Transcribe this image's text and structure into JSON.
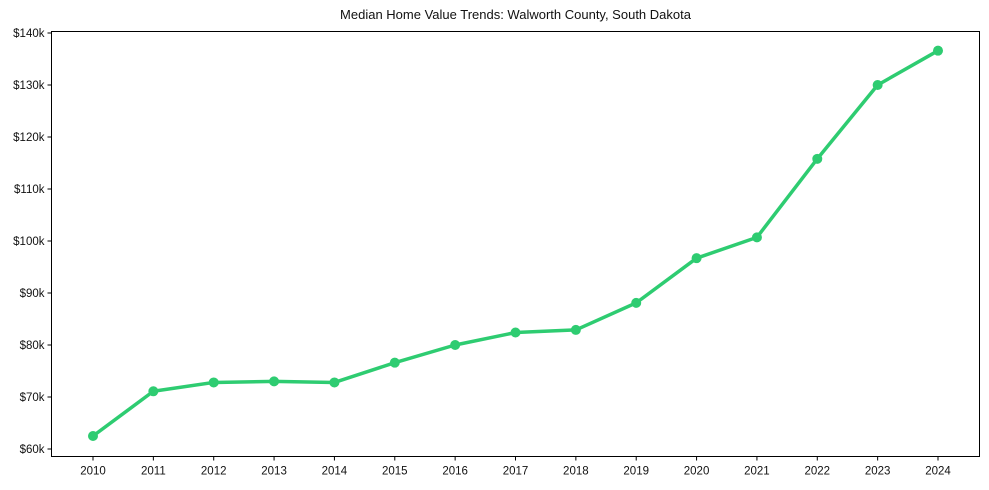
{
  "chart_data": {
    "type": "line",
    "title": "Median Home Value Trends: Walworth County, South Dakota",
    "xlabel": "",
    "ylabel": "",
    "categories": [
      "2010",
      "2011",
      "2012",
      "2013",
      "2014",
      "2015",
      "2016",
      "2017",
      "2018",
      "2019",
      "2020",
      "2021",
      "2022",
      "2023",
      "2024"
    ],
    "series": [
      {
        "name": "Median Home Value",
        "color": "#2ecc71",
        "values": [
          62500,
          71100,
          72800,
          73000,
          72800,
          76600,
          80000,
          82400,
          82900,
          88100,
          96700,
          100700,
          115800,
          130000,
          136600
        ]
      }
    ],
    "ylim": [
      59000,
      141000
    ],
    "yticks": [
      60000,
      70000,
      80000,
      90000,
      100000,
      110000,
      120000,
      130000,
      140000
    ],
    "ytick_labels": [
      "$60k",
      "$70k",
      "$80k",
      "$90k",
      "$100k",
      "$110k",
      "$120k",
      "$130k",
      "$140k"
    ],
    "grid": false,
    "legend": null,
    "markers": true
  }
}
